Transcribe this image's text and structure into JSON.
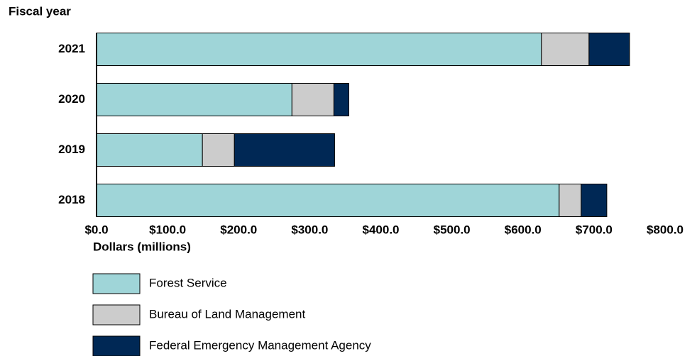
{
  "chart_data": {
    "type": "stacked-bar-horizontal",
    "y_axis_label": "Fiscal year",
    "x_axis_label": "Dollars (millions)",
    "categories": [
      "2021",
      "2020",
      "2019",
      "2018"
    ],
    "series": [
      {
        "name": "Forest Service",
        "color": "#9fd5d8",
        "values": [
          626,
          275,
          149,
          651
        ]
      },
      {
        "name": "Bureau of Land Management",
        "color": "#cccccc",
        "values": [
          67,
          59,
          45,
          31
        ]
      },
      {
        "name": "Federal Emergency Management Agency",
        "color": "#002855",
        "values": [
          57,
          21,
          141,
          36
        ]
      }
    ],
    "xlim": [
      0,
      800
    ],
    "xticks": [
      {
        "value": 0,
        "label": "$0.0"
      },
      {
        "value": 100,
        "label": "$100.0"
      },
      {
        "value": 200,
        "label": "$200.0"
      },
      {
        "value": 300,
        "label": "$300.0"
      },
      {
        "value": 400,
        "label": "$400.0"
      },
      {
        "value": 500,
        "label": "$500.0"
      },
      {
        "value": 600,
        "label": "$600.0"
      },
      {
        "value": 700,
        "label": "$700.0"
      },
      {
        "value": 800,
        "label": "$800.0"
      }
    ],
    "grid": false,
    "legend": "bottom"
  }
}
